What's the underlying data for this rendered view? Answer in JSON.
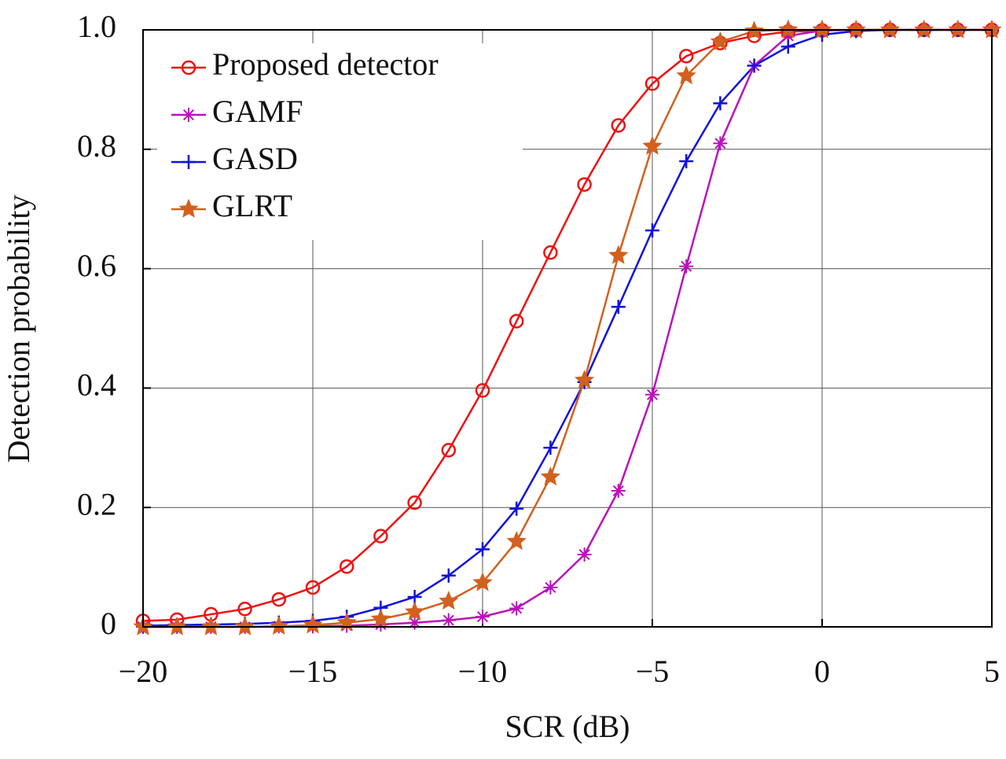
{
  "chart_data": {
    "type": "line",
    "x_label": "SCR (dB)",
    "y_label": "Detection probability",
    "x": [
      -20,
      -19,
      -18,
      -17,
      -16,
      -15,
      -14,
      -13,
      -12,
      -11,
      -10,
      -9,
      -8,
      -7,
      -6,
      -5,
      -4,
      -3,
      -2,
      -1,
      0,
      1,
      2,
      3,
      4,
      5
    ],
    "series": [
      {
        "name": "Proposed detector",
        "color": "#ee1111",
        "marker": "circle",
        "values": [
          0.01,
          0.012,
          0.021,
          0.03,
          0.046,
          0.066,
          0.101,
          0.152,
          0.208,
          0.296,
          0.396,
          0.512,
          0.627,
          0.741,
          0.84,
          0.91,
          0.956,
          0.978,
          0.99,
          0.997,
          0.999,
          1,
          1,
          1,
          1,
          1
        ]
      },
      {
        "name": "GAMF",
        "color": "#bb11bb",
        "marker": "asterisk",
        "values": [
          0,
          0,
          0,
          0,
          0.001,
          0.001,
          0.002,
          0.004,
          0.007,
          0.011,
          0.017,
          0.031,
          0.066,
          0.121,
          0.228,
          0.389,
          0.604,
          0.81,
          0.94,
          0.99,
          0.999,
          1,
          1,
          1,
          1,
          1
        ]
      },
      {
        "name": "GASD",
        "color": "#1111dd",
        "marker": "plus",
        "values": [
          0.002,
          0.003,
          0.004,
          0.005,
          0.007,
          0.01,
          0.017,
          0.032,
          0.05,
          0.086,
          0.13,
          0.198,
          0.3,
          0.41,
          0.536,
          0.664,
          0.78,
          0.877,
          0.94,
          0.972,
          0.992,
          0.998,
          1,
          1,
          1,
          1
        ]
      },
      {
        "name": "GLRT",
        "color": "#d2601e",
        "marker": "star",
        "values": [
          0,
          0,
          0,
          0,
          0.001,
          0.003,
          0.007,
          0.013,
          0.025,
          0.043,
          0.074,
          0.143,
          0.251,
          0.413,
          0.622,
          0.805,
          0.923,
          0.98,
          0.998,
          1,
          1,
          1,
          1,
          1,
          1,
          1
        ]
      }
    ],
    "xlim": [
      -20,
      5
    ],
    "xticks": [
      {
        "value": -20,
        "label": "−20"
      },
      {
        "value": -15,
        "label": "−15"
      },
      {
        "value": -10,
        "label": "−10"
      },
      {
        "value": -5,
        "label": "−5"
      },
      0,
      5
    ],
    "ylim": [
      0,
      1
    ],
    "yticks": [
      0,
      0.2,
      0.4,
      0.6,
      0.8,
      {
        "value": 1,
        "label": "1.0"
      }
    ],
    "grid": true,
    "legend": "upper left"
  }
}
